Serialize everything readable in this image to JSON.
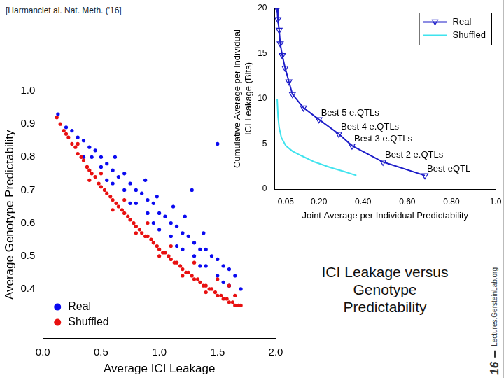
{
  "slide": {
    "citation": "[Harmanciet al. Nat. Meth. ('16]",
    "caption": [
      "ICI Leakage versus",
      "Genotype",
      "Predictability"
    ],
    "page_number": 16,
    "footer": "Lectures.GersteinLab.org"
  },
  "chart_data": [
    {
      "type": "scatter",
      "x_label": "Average ICI Leakage",
      "y_label": "Average Genotype Predictability",
      "xlim": [
        0,
        2
      ],
      "xticks": [
        {
          "value": 0,
          "label": "0.0"
        },
        0.5,
        {
          "value": 1,
          "label": "1.0"
        },
        1.5,
        {
          "value": 2,
          "label": "2.0"
        }
      ],
      "ylim": [
        0.25,
        1
      ],
      "yticks": [
        0.4,
        0.5,
        0.6,
        0.7,
        0.8,
        0.9,
        {
          "value": 1,
          "label": "1.0"
        }
      ],
      "grid": false,
      "legend": "lower left",
      "series": [
        {
          "name": "Real",
          "color": "#0a0af0",
          "marker": "circle",
          "x": [
            0.13,
            0.2,
            0.25,
            0.3,
            0.35,
            0.4,
            0.42,
            0.45,
            0.5,
            0.5,
            0.55,
            0.6,
            0.6,
            0.65,
            0.7,
            0.7,
            0.75,
            0.8,
            0.8,
            0.85,
            0.9,
            0.9,
            0.95,
            1.0,
            1.0,
            1.05,
            1.1,
            1.1,
            1.15,
            1.2,
            1.2,
            1.25,
            1.28,
            1.3,
            1.3,
            1.35,
            1.4,
            1.4,
            1.45,
            1.5,
            1.5,
            1.5,
            1.55,
            1.6,
            1.6,
            1.65,
            1.7,
            0.35,
            0.55,
            0.75,
            0.95,
            1.15,
            1.35,
            1.55,
            0.62,
            0.88,
            1.12,
            1.38,
            0.98,
            1.22
          ],
          "values": [
            0.93,
            0.89,
            0.88,
            0.86,
            0.85,
            0.83,
            0.8,
            0.82,
            0.8,
            0.77,
            0.78,
            0.76,
            0.72,
            0.74,
            0.75,
            0.7,
            0.72,
            0.7,
            0.66,
            0.69,
            0.67,
            0.63,
            0.66,
            0.63,
            0.58,
            0.62,
            0.6,
            0.56,
            0.59,
            0.57,
            0.52,
            0.56,
            0.7,
            0.54,
            0.5,
            0.52,
            0.52,
            0.47,
            0.5,
            0.84,
            0.49,
            0.44,
            0.47,
            0.46,
            0.41,
            0.44,
            0.4,
            0.8,
            0.73,
            0.66,
            0.6,
            0.53,
            0.47,
            0.42,
            0.8,
            0.73,
            0.65,
            0.57,
            0.68,
            0.62
          ]
        },
        {
          "name": "Shuffled",
          "color": "#e81010",
          "marker": "circle",
          "x": [
            0.12,
            0.15,
            0.18,
            0.2,
            0.22,
            0.25,
            0.28,
            0.3,
            0.33,
            0.35,
            0.38,
            0.4,
            0.42,
            0.45,
            0.48,
            0.5,
            0.53,
            0.55,
            0.58,
            0.6,
            0.63,
            0.65,
            0.68,
            0.7,
            0.73,
            0.75,
            0.78,
            0.8,
            0.83,
            0.85,
            0.88,
            0.9,
            0.93,
            0.95,
            0.98,
            1.0,
            1.03,
            1.05,
            1.08,
            1.1,
            1.13,
            1.15,
            1.18,
            1.2,
            1.23,
            1.25,
            1.28,
            1.3,
            1.33,
            1.35,
            1.38,
            1.4,
            1.43,
            1.45,
            1.48,
            1.5,
            1.53,
            1.55,
            1.58,
            1.6,
            1.63,
            1.65,
            1.68,
            1.7,
            0.3,
            0.5,
            0.7,
            0.9,
            1.1,
            1.3,
            1.5,
            1.6,
            0.4,
            0.6,
            0.8,
            1.0,
            1.2,
            1.4,
            1.65
          ],
          "values": [
            0.92,
            0.9,
            0.88,
            0.87,
            0.86,
            0.84,
            0.83,
            0.81,
            0.8,
            0.79,
            0.77,
            0.76,
            0.75,
            0.74,
            0.72,
            0.71,
            0.7,
            0.69,
            0.68,
            0.67,
            0.66,
            0.65,
            0.64,
            0.63,
            0.62,
            0.61,
            0.6,
            0.59,
            0.58,
            0.57,
            0.56,
            0.56,
            0.55,
            0.54,
            0.53,
            0.52,
            0.51,
            0.51,
            0.5,
            0.49,
            0.48,
            0.48,
            0.47,
            0.46,
            0.45,
            0.45,
            0.44,
            0.43,
            0.43,
            0.42,
            0.41,
            0.41,
            0.4,
            0.4,
            0.39,
            0.38,
            0.38,
            0.37,
            0.37,
            0.36,
            0.36,
            0.35,
            0.35,
            0.35,
            0.84,
            0.75,
            0.67,
            0.6,
            0.53,
            0.48,
            0.43,
            0.41,
            0.73,
            0.64,
            0.57,
            0.5,
            0.44,
            0.39,
            0.38
          ]
        }
      ]
    },
    {
      "type": "line",
      "x_label": "Joint Average per Individual Predictability",
      "y_label": [
        "Cumulative Average per Individual",
        "ICI Leakage (Bits)"
      ],
      "xlim": [
        0,
        1
      ],
      "xticks": [
        0.05,
        {
          "value": 0.2,
          "label": "0.20"
        },
        {
          "value": 0.4,
          "label": "0.40"
        },
        {
          "value": 0.6,
          "label": "0.60"
        },
        {
          "value": 0.8,
          "label": "0.80"
        },
        {
          "value": 1,
          "label": "1.0"
        }
      ],
      "ylim": [
        0,
        20
      ],
      "yticks": [
        0,
        5,
        10,
        15,
        20
      ],
      "grid": false,
      "legend": "upper right",
      "series": [
        {
          "name": "Real",
          "color": "#1c1cc8",
          "marker": "triangle_down",
          "line_style": "solid",
          "x": [
            0.011,
            0.014,
            0.02,
            0.025,
            0.034,
            0.047,
            0.064,
            0.08,
            0.13,
            0.2,
            0.29,
            0.35,
            0.49,
            0.68
          ],
          "values": [
            20,
            18.8,
            17.6,
            16.1,
            14.8,
            13.4,
            11.9,
            10.5,
            9.0,
            7.7,
            6.1,
            4.8,
            3.0,
            1.5
          ]
        },
        {
          "name": "Shuffled",
          "color": "#3fe3ee",
          "marker": "none",
          "line_style": "solid",
          "x": [
            0.011,
            0.015,
            0.02,
            0.03,
            0.05,
            0.08,
            0.12,
            0.18,
            0.25,
            0.32,
            0.37
          ],
          "values": [
            10,
            8,
            6.8,
            5.7,
            4.8,
            4.2,
            3.7,
            3.0,
            2.4,
            1.9,
            1.5
          ]
        }
      ],
      "annotations": [
        {
          "text": "Best 5 e.QTLs",
          "x": 0.2,
          "y": 7.7
        },
        {
          "text": "Best 4 e.QTLs",
          "x": 0.29,
          "y": 6.1
        },
        {
          "text": "Best 3 e.QTLs",
          "x": 0.35,
          "y": 4.8
        },
        {
          "text": "Best 2 e.QTLs",
          "x": 0.49,
          "y": 3.0
        },
        {
          "text": "Best eQTL",
          "x": 0.68,
          "y": 1.5
        }
      ]
    }
  ]
}
